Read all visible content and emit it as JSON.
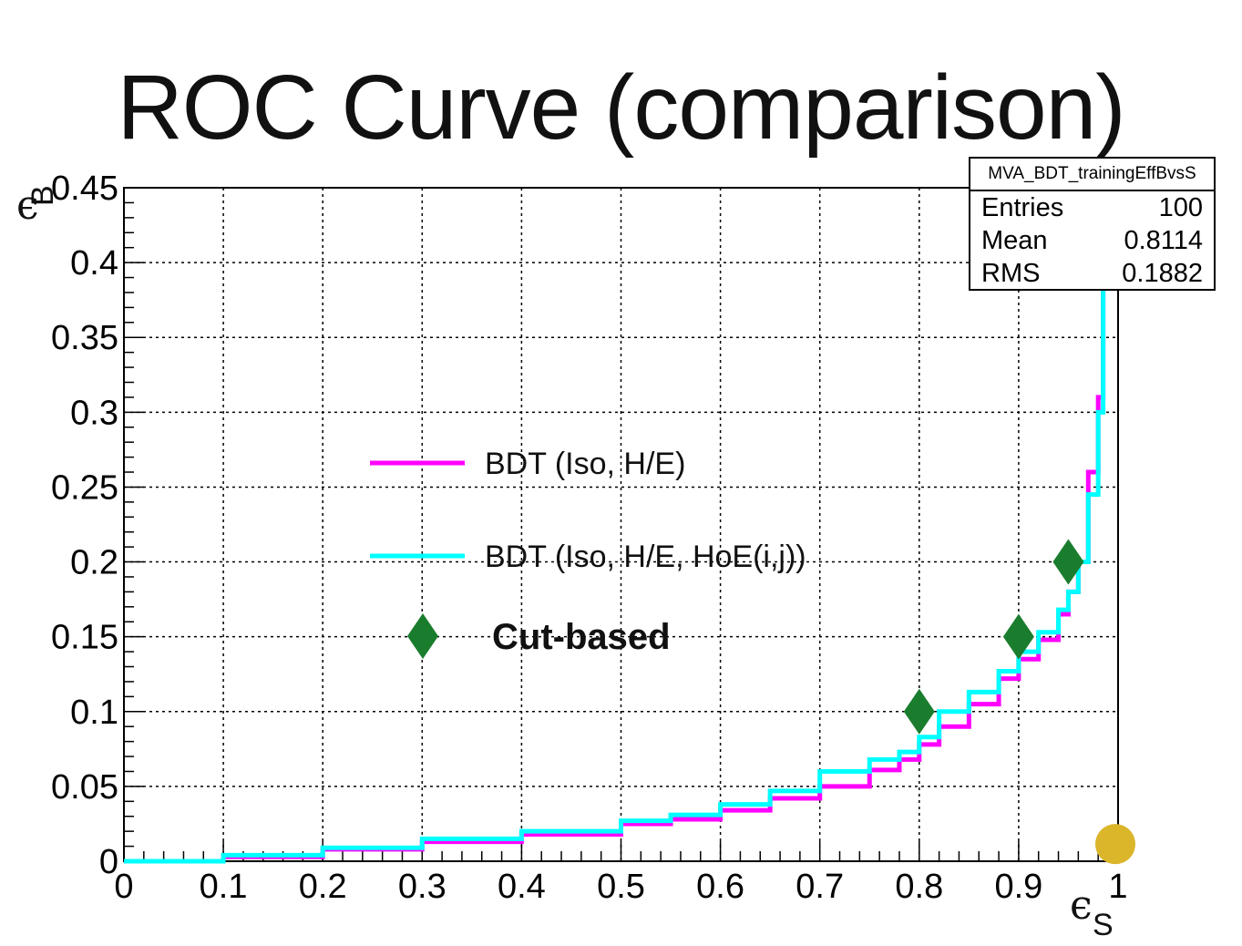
{
  "title": "ROC Curve (comparison)",
  "stats": {
    "name": "MVA_BDT_trainingEffBvsS",
    "rows": [
      {
        "label": "Entries",
        "value": "100"
      },
      {
        "label": "Mean",
        "value": "0.8114"
      },
      {
        "label": "RMS",
        "value": "0.1882"
      }
    ]
  },
  "chart_data": {
    "type": "line",
    "title": "ROC Curve (comparison)",
    "xlabel": "ε_S",
    "ylabel": "ε_B",
    "xlim": [
      0,
      1
    ],
    "ylim": [
      0,
      0.45
    ],
    "grid": true,
    "xticks": [
      "0",
      "0.1",
      "0.2",
      "0.3",
      "0.4",
      "0.5",
      "0.6",
      "0.7",
      "0.8",
      "0.9",
      "1"
    ],
    "yticks": [
      "0",
      "0.05",
      "0.1",
      "0.15",
      "0.2",
      "0.25",
      "0.3",
      "0.35",
      "0.4",
      "0.45"
    ],
    "legend_position": "center",
    "series": [
      {
        "name": "BDT (Iso, H/E)",
        "color": "#ff00ff",
        "x": [
          0,
          0.1,
          0.2,
          0.3,
          0.4,
          0.5,
          0.55,
          0.6,
          0.65,
          0.7,
          0.75,
          0.78,
          0.8,
          0.82,
          0.85,
          0.88,
          0.9,
          0.92,
          0.94,
          0.95,
          0.96,
          0.97,
          0.98,
          0.985,
          0.99
        ],
        "y": [
          0,
          0.003,
          0.008,
          0.013,
          0.018,
          0.025,
          0.028,
          0.034,
          0.042,
          0.05,
          0.061,
          0.068,
          0.078,
          0.09,
          0.105,
          0.122,
          0.135,
          0.148,
          0.165,
          0.18,
          0.2,
          0.26,
          0.31,
          0.44,
          0.45
        ]
      },
      {
        "name": "BDT (Iso, H/E, HoE(i,j))",
        "color": "#00ffff",
        "x": [
          0,
          0.1,
          0.2,
          0.3,
          0.4,
          0.5,
          0.55,
          0.6,
          0.65,
          0.7,
          0.75,
          0.78,
          0.8,
          0.82,
          0.85,
          0.88,
          0.9,
          0.92,
          0.94,
          0.95,
          0.96,
          0.97,
          0.98,
          0.985,
          0.99
        ],
        "y": [
          0,
          0.004,
          0.009,
          0.015,
          0.02,
          0.027,
          0.031,
          0.038,
          0.047,
          0.06,
          0.068,
          0.073,
          0.083,
          0.1,
          0.113,
          0.127,
          0.14,
          0.153,
          0.168,
          0.18,
          0.2,
          0.245,
          0.3,
          0.45,
          0.45
        ]
      },
      {
        "name": "Cut-based",
        "color": "#1a7d2e",
        "marker": "diamond",
        "x": [
          0.8,
          0.9,
          0.95
        ],
        "y": [
          0.1,
          0.15,
          0.2
        ]
      },
      {
        "name": "",
        "color": "#dbb52a",
        "marker": "circle",
        "x": [
          1.0
        ],
        "y": [
          0.006
        ]
      }
    ]
  }
}
